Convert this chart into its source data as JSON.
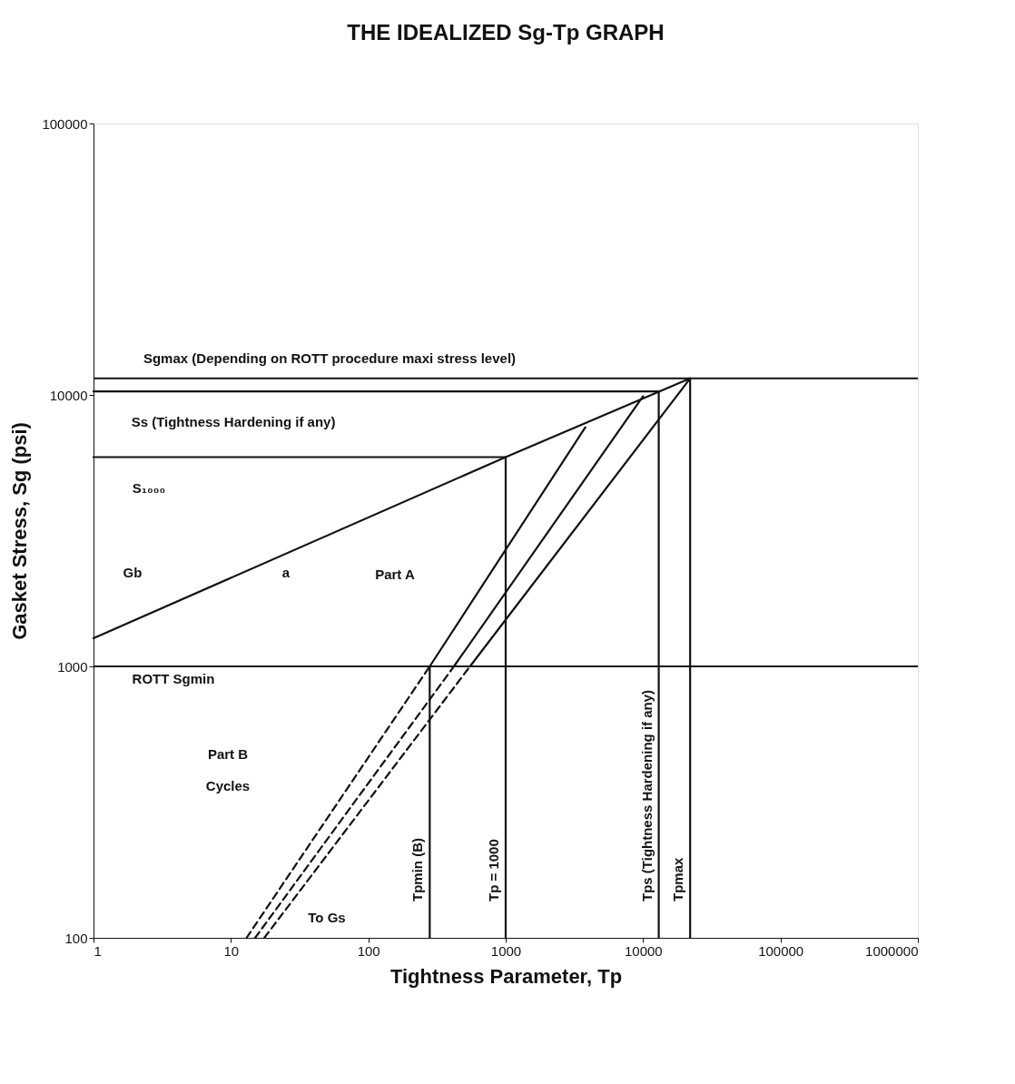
{
  "chart_data": {
    "type": "line",
    "title": "THE IDEALIZED Sg-Tp GRAPH",
    "xlabel": "Tightness Parameter, Tp",
    "ylabel": "Gasket Stress, Sg (psi)",
    "log": "xy",
    "xlim": [
      1,
      1000000
    ],
    "ylim": [
      100,
      100000
    ],
    "xticks": [
      1,
      10,
      100,
      1000,
      10000,
      100000,
      1000000
    ],
    "yticks": [
      100,
      1000,
      10000,
      100000
    ],
    "grid": false,
    "marker": "none",
    "series": [
      {
        "color": "#111111",
        "line_style": "solid",
        "x": [
          1,
          1000,
          22000
        ],
        "values": [
          1270,
          5900,
          11500
        ]
      },
      {
        "color": "#111111",
        "line_style": "solid",
        "x": [
          280,
          3800
        ],
        "values": [
          1000,
          7600
        ]
      },
      {
        "color": "#111111",
        "line_style": "solid",
        "x": [
          420,
          10000
        ],
        "values": [
          1000,
          9900
        ]
      },
      {
        "color": "#111111",
        "line_style": "solid",
        "x": [
          550,
          22000
        ],
        "values": [
          1000,
          11500
        ]
      },
      {
        "color": "#111111",
        "line_style": "dashed",
        "x": [
          13,
          280
        ],
        "values": [
          100,
          1000
        ]
      },
      {
        "color": "#111111",
        "line_style": "dashed",
        "x": [
          15,
          420
        ],
        "values": [
          100,
          1000
        ]
      },
      {
        "color": "#111111",
        "line_style": "dashed",
        "x": [
          17.5,
          550
        ],
        "values": [
          100,
          1000
        ]
      },
      {
        "color": "#111111",
        "line_style": "solid",
        "x": [
          1,
          13000
        ],
        "values": [
          10300,
          10300
        ]
      },
      {
        "color": "#111111",
        "line_style": "solid",
        "x": [
          1,
          1000
        ],
        "values": [
          5900,
          5900
        ]
      },
      {
        "name": "Tpmin (B)",
        "color": "#111111",
        "line_style": "solid",
        "x": [
          280,
          280
        ],
        "values": [
          100,
          1000
        ]
      },
      {
        "name": "Tp = 1000",
        "color": "#111111",
        "line_style": "solid",
        "x": [
          1000,
          1000
        ],
        "values": [
          100,
          5900
        ]
      },
      {
        "name": "Tps (Tightness Hardening if any)",
        "color": "#111111",
        "line_style": "solid",
        "x": [
          13000,
          13000
        ],
        "values": [
          100,
          10300
        ]
      },
      {
        "name": "Tpmax",
        "color": "#111111",
        "line_style": "solid",
        "x": [
          22000,
          22000
        ],
        "values": [
          100,
          11500
        ]
      }
    ],
    "ref_lines": [
      {
        "axis": "y",
        "value": 11500,
        "color": "#111111"
      },
      {
        "axis": "y",
        "value": 1000,
        "color": "#111111"
      }
    ],
    "annotations": [
      "Sgmax (Depending on ROTT procedure maxi stress level)",
      "Ss (Tightness Hardening if any)",
      "S₁₀₀₀",
      "Gb",
      "a",
      "Part A",
      "ROTT Sgmin",
      "Part B",
      "Cycles",
      "To Gs"
    ]
  }
}
